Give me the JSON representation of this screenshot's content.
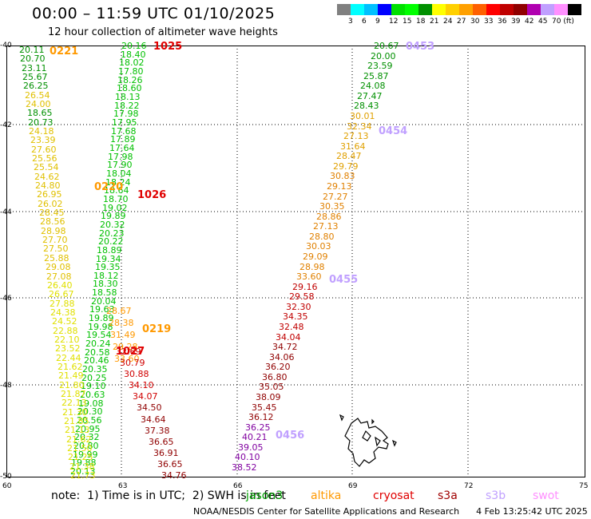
{
  "title": "00:00 – 11:59 UTC 01/10/2025",
  "subtitle": "12 hour collection of altimeter wave heights",
  "colorbar": {
    "colors": [
      "#808080",
      "#00ffff",
      "#00c0ff",
      "#0000ff",
      "#00e000",
      "#00ff00",
      "#009000",
      "#ffff00",
      "#ffd000",
      "#ffa000",
      "#ff6000",
      "#ff0000",
      "#c00000",
      "#900000",
      "#b000b0",
      "#c0a0ff",
      "#ff90ff",
      "#000000"
    ],
    "labels": [
      "3",
      "6",
      "9",
      "12",
      "15",
      "18",
      "21",
      "24",
      "27",
      "30",
      "33",
      "36",
      "39",
      "42",
      "45",
      "70 (ft)"
    ]
  },
  "lat_labels": [
    "-40",
    "-42",
    "-44",
    "-46",
    "-48",
    "-50"
  ],
  "lon_labels": [
    "60",
    "63",
    "66",
    "69",
    "72",
    "75"
  ],
  "tracks": [
    {
      "color": "#00c000",
      "values": [
        "20.16",
        "18.40",
        "18.02",
        "17.80",
        "18.26",
        "18.60",
        "18.13",
        "18.22",
        "17.98",
        "17.95",
        "17.68",
        "17.89",
        "17.64",
        "17.98",
        "17.90",
        "18.04",
        "18.24",
        "18.64",
        "18.70",
        "19.02",
        "19.89",
        "20.32",
        "20.23",
        "20.22",
        "18.89",
        "19.34",
        "19.35",
        "18.12",
        "18.30",
        "18.58",
        "20.04",
        "19.63",
        "19.89",
        "19.98",
        "19.54",
        "20.24",
        "20.58",
        "20.46",
        "20.35",
        "20.25",
        "19.10",
        "20.63",
        "19.08",
        "20.30",
        "20.56",
        "20.95",
        "20.32",
        "20.80",
        "19.99",
        "19.88",
        "20.13"
      ]
    },
    {
      "color": "#ffff00",
      "values": [
        "20.11",
        "20.70",
        "23.11",
        "25.67",
        "26.25",
        "26.54",
        "24.00",
        "18.65",
        "20.73",
        "24.18",
        "23.39",
        "27.60",
        "25.56",
        "25.54",
        "24.62",
        "24.80",
        "26.95",
        "26.02",
        "28.45",
        "28.56",
        "28.98",
        "27.70",
        "27.50",
        "25.88",
        "29.08",
        "27.08",
        "26.40",
        "26.67",
        "27.88",
        "24.38",
        "24.52",
        "22.88",
        "22.10",
        "23.52",
        "22.44",
        "21.62",
        "21.49",
        "21.80",
        "21.87",
        "22.13",
        "21.30",
        "21.85",
        "21.13",
        "21.62",
        "21.50",
        "21.25",
        "21.38",
        "21.73"
      ]
    },
    {
      "color": "#ff9900",
      "values": [
        "28.67",
        "28.38",
        "31.49",
        "29.28",
        "33.60"
      ]
    },
    {
      "color": "#d00000",
      "values": [
        "32.69",
        "30.79",
        "30.88",
        "34.10",
        "34.07",
        "34.50",
        "34.64",
        "37.38",
        "36.65",
        "36.91",
        "36.65",
        "34.76"
      ]
    },
    {
      "color": "#e0a000",
      "values": [
        "20.67",
        "20.00",
        "23.59",
        "25.87",
        "24.08",
        "27.47",
        "28.43",
        "30.01",
        "32.34",
        "27.13",
        "31.64",
        "28.47",
        "29.79",
        "30.83",
        "29.13",
        "27.27",
        "30.35",
        "28.86",
        "27.13",
        "28.80",
        "30.03",
        "29.09",
        "28.98",
        "33.60",
        "29.16",
        "29.58",
        "32.30",
        "34.35",
        "32.48",
        "34.04",
        "34.72",
        "34.06",
        "36.20",
        "36.80",
        "35.05",
        "38.09",
        "35.45",
        "36.12",
        "36.25",
        "40.21",
        "39.05",
        "40.10",
        "38.52"
      ]
    }
  ],
  "time_markers": [
    {
      "text": "0221",
      "color": "#ff9900"
    },
    {
      "text": "1025",
      "color": "#e00000"
    },
    {
      "text": "0453",
      "color": "#c0a0ff"
    },
    {
      "text": "0454",
      "color": "#c0a0ff"
    },
    {
      "text": "0220",
      "color": "#ff9900"
    },
    {
      "text": "1026",
      "color": "#e00000"
    },
    {
      "text": "0455",
      "color": "#c0a0ff"
    },
    {
      "text": "0219",
      "color": "#ff9900"
    },
    {
      "text": "1027",
      "color": "#e00000"
    },
    {
      "text": "0456",
      "color": "#c0a0ff"
    }
  ],
  "note": "note:  1) Time is in UTC;  2) SWH is in feet",
  "satellites": [
    {
      "name": "jason3",
      "color": "#00a000"
    },
    {
      "name": "altika",
      "color": "#ff9900"
    },
    {
      "name": "cryosat",
      "color": "#e00000"
    },
    {
      "name": "s3a",
      "color": "#a00000"
    },
    {
      "name": "s3b",
      "color": "#c0a0ff"
    },
    {
      "name": "swot",
      "color": "#ff90ff"
    }
  ],
  "footer": "NOAA/NESDIS Center for Satellite Applications and Research      4 Feb 13:25:42 UTC 2025"
}
